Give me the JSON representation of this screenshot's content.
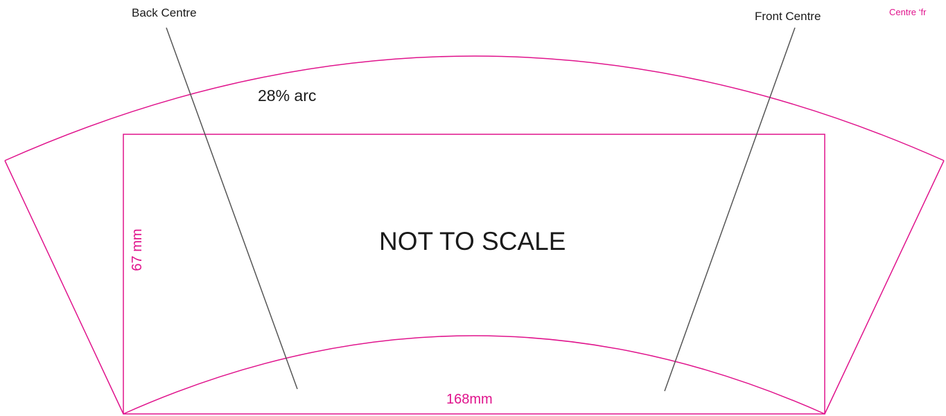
{
  "labels": {
    "back_centre": "Back Centre",
    "front_centre": "Front Centre",
    "corner_note": "Centre ‘fr",
    "arc": "28% arc",
    "scale_note": "NOT TO SCALE",
    "width": "168mm",
    "height": "67 mm"
  },
  "colors": {
    "outline": "#e0138c",
    "pointer": "#555555",
    "text": "#1a1a1a"
  }
}
